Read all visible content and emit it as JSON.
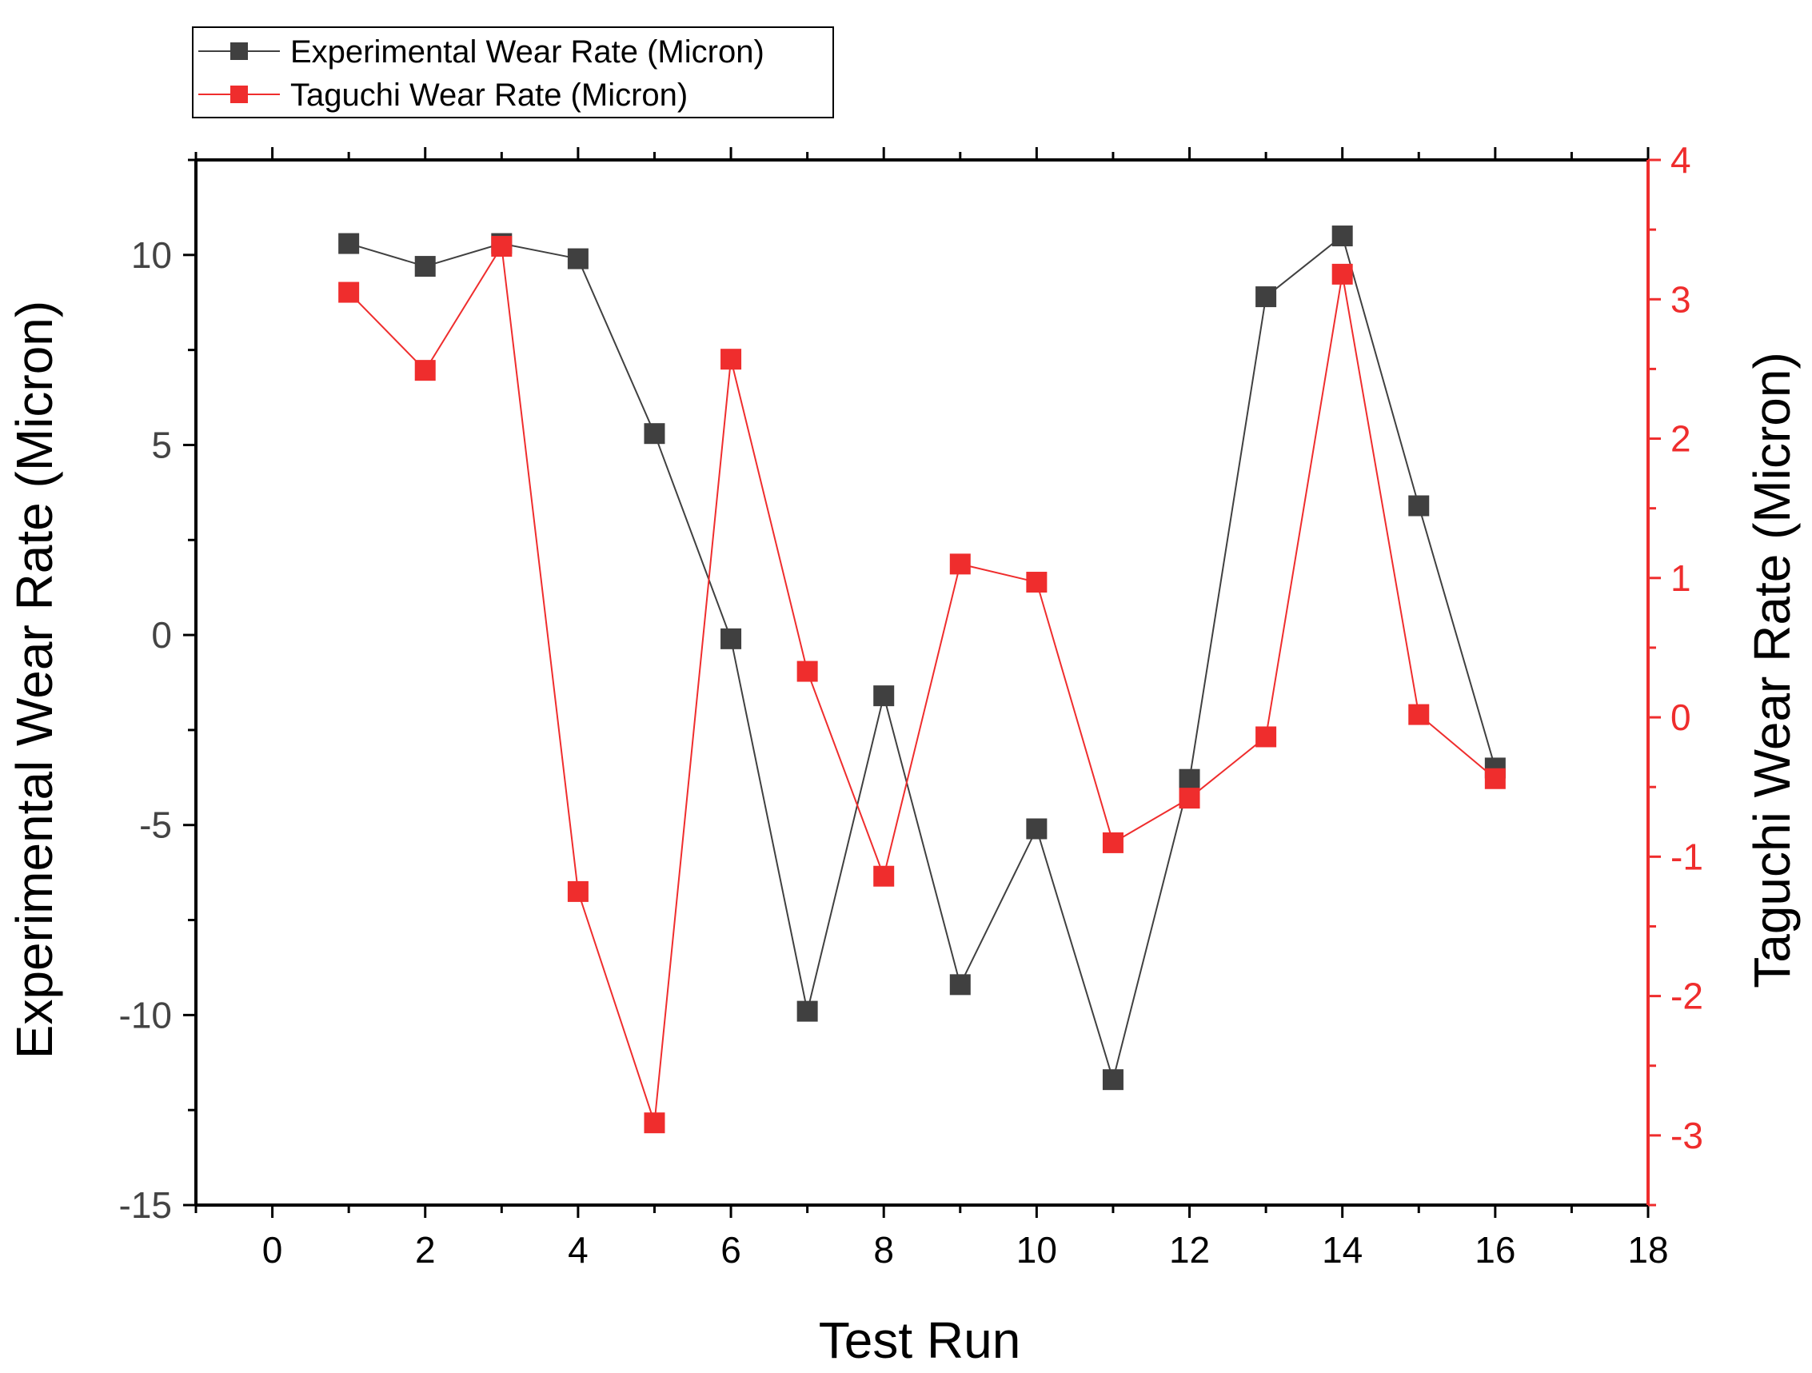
{
  "chart_data": {
    "type": "line",
    "title": "",
    "xlabel": "Test Run",
    "ylabel": "Experimental Wear Rate (Micron)",
    "y2label": "Taguchi Wear Rate (Micron)",
    "xlim": [
      -1,
      18
    ],
    "ylim": [
      -15,
      12.5
    ],
    "y2lim": [
      -3.5,
      4
    ],
    "x_ticks": [
      0,
      2,
      4,
      6,
      8,
      10,
      12,
      14,
      16,
      18
    ],
    "y_ticks": [
      -15,
      -10,
      -5,
      0,
      5,
      10
    ],
    "y2_ticks": [
      -3,
      -2,
      -1,
      0,
      1,
      2,
      3,
      4
    ],
    "x_tick_labels": [
      "0",
      "2",
      "4",
      "6",
      "8",
      "10",
      "12",
      "14",
      "16",
      "18"
    ],
    "y_tick_labels": [
      "-15",
      "-10",
      "-5",
      "0",
      "5",
      "10"
    ],
    "y2_tick_labels": [
      "-3",
      "-2",
      "-1",
      "0",
      "1",
      "2",
      "3",
      "4"
    ],
    "x": [
      1,
      2,
      3,
      4,
      5,
      6,
      7,
      8,
      9,
      10,
      11,
      12,
      13,
      14,
      15,
      16
    ],
    "series": [
      {
        "name": "Experimental Wear Rate (Micron)",
        "axis": "left",
        "color": "#404040",
        "values": [
          10.3,
          9.7,
          10.3,
          9.9,
          5.3,
          -0.1,
          -9.9,
          -1.6,
          -9.2,
          -5.1,
          -11.7,
          -3.8,
          8.9,
          10.5,
          3.4,
          -3.5
        ]
      },
      {
        "name": "Taguchi Wear Rate (Micron)",
        "axis": "right",
        "color": "#ef2d2d",
        "values": [
          3.05,
          2.49,
          3.38,
          -1.25,
          -2.91,
          2.57,
          0.33,
          -1.14,
          1.1,
          0.97,
          -0.9,
          -0.58,
          -0.14,
          3.18,
          0.02,
          -0.44
        ]
      }
    ],
    "legend_position": "top-left",
    "left_axis_color": "#000000",
    "right_axis_color": "#ef2d2d",
    "tick_label_color": "#444444"
  }
}
